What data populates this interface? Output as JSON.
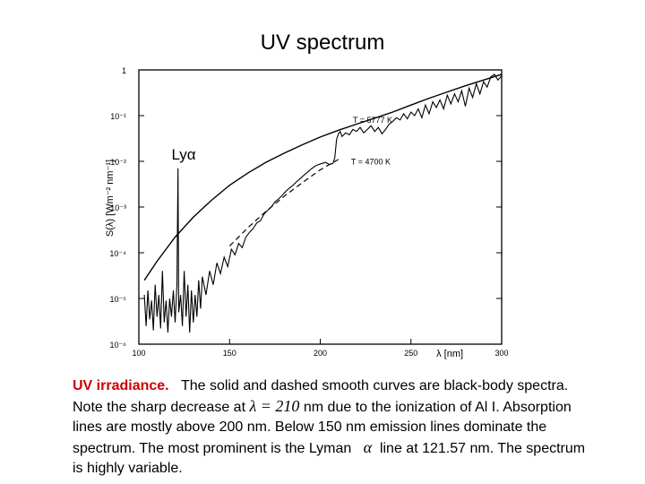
{
  "title": "UV spectrum",
  "caption": {
    "heading": "UV irradiance.",
    "line1": "The solid and dashed smooth curves are black-body spectra.",
    "line2a": "Note the sharp decrease at",
    "line2_math": "λ = 210",
    "line2b": "nm due to the ionization of Al I. Absorption",
    "line3": "lines are mostly above 200 nm. Below 150 nm emission lines dominate the",
    "line4a": "spectrum. The most prominent is the Lyman",
    "line4_math": "α",
    "line4b": "line at 121.57 nm. The spectrum",
    "line5": "is highly variable."
  },
  "chart_data": {
    "type": "line",
    "scale_y": "log",
    "xlim": [
      100,
      300
    ],
    "ylim": [
      1e-06,
      1
    ],
    "xticks": [
      100,
      150,
      200,
      250,
      300
    ],
    "xtick_labels": [
      "100",
      "150",
      "200",
      "250",
      "300"
    ],
    "yticks": [
      1e-06,
      1e-05,
      0.0001,
      0.001,
      0.01,
      0.1,
      1
    ],
    "ytick_labels": [
      "10⁻⁶",
      "10⁻⁵",
      "10⁻⁴",
      "10⁻³",
      "10⁻²",
      "10⁻¹",
      "1"
    ],
    "xlabel": "λ [nm]",
    "ylabel": "S(λ) [Wm⁻² nm⁻¹]",
    "annotations": [
      {
        "text": "T = 5777 K",
        "x": 218,
        "y": 0.07
      },
      {
        "text": "T = 4700 K",
        "x": 217,
        "y": 0.0085
      },
      {
        "text": "Lyα",
        "x": 118,
        "y": 0.011
      }
    ],
    "series": [
      {
        "style": "solid",
        "x": [
          103,
          110,
          120,
          130,
          140,
          150,
          160,
          170,
          180,
          190,
          200,
          210,
          220,
          230,
          240,
          250,
          260,
          270,
          280,
          290,
          300
        ],
        "y": [
          2.5e-05,
          6.5e-05,
          0.00022,
          0.0006,
          0.0014,
          0.003,
          0.0055,
          0.0095,
          0.015,
          0.023,
          0.034,
          0.048,
          0.065,
          0.088,
          0.12,
          0.17,
          0.24,
          0.33,
          0.45,
          0.6,
          0.8
        ]
      },
      {
        "style": "dashed",
        "x": [
          150,
          160,
          170,
          180,
          190,
          200,
          205,
          210
        ],
        "y": [
          0.00014,
          0.00035,
          0.0008,
          0.0017,
          0.0034,
          0.0065,
          0.0085,
          0.011
        ]
      },
      {
        "style": "observed",
        "x": [
          103,
          104,
          105,
          106,
          107,
          108,
          109,
          110,
          111,
          112,
          113,
          114,
          115,
          116,
          117,
          118,
          119,
          120,
          121,
          121.6,
          122,
          123,
          124,
          125,
          126,
          127,
          128,
          129,
          130,
          131,
          132,
          133,
          134,
          135,
          137,
          139,
          141,
          143,
          145,
          147,
          149,
          151,
          153,
          155,
          157,
          159,
          161,
          163,
          165,
          167,
          169,
          171,
          173,
          175,
          177,
          179,
          181,
          183,
          185,
          187,
          189,
          191,
          193,
          195,
          197,
          199,
          201,
          203,
          205,
          207,
          208,
          209,
          210,
          211,
          212,
          214,
          216,
          218,
          220,
          222,
          224,
          226,
          228,
          230,
          232,
          234,
          236,
          238,
          240,
          242,
          244,
          246,
          248,
          250,
          252,
          254,
          256,
          258,
          260,
          262,
          264,
          266,
          268,
          270,
          272,
          274,
          276,
          278,
          280,
          282,
          284,
          286,
          288,
          290,
          292,
          294,
          296,
          298,
          300
        ],
        "y": [
          1.2e-05,
          2.5e-06,
          1.5e-05,
          3.5e-06,
          9e-06,
          2e-06,
          2e-05,
          4e-06,
          1.2e-05,
          2.2e-06,
          4e-05,
          3e-06,
          9e-06,
          1.8e-06,
          1e-05,
          4e-06,
          1.5e-05,
          3e-06,
          2e-05,
          0.007,
          5e-06,
          1.2e-05,
          2.5e-06,
          4e-05,
          4e-06,
          2e-05,
          1.8e-06,
          1.5e-05,
          3e-06,
          1.2e-05,
          4e-06,
          2.5e-05,
          6e-06,
          3e-05,
          1.2e-05,
          4e-05,
          2e-05,
          6e-05,
          3.5e-05,
          8e-05,
          5e-05,
          0.00012,
          9e-05,
          0.00016,
          0.00013,
          0.00022,
          0.00028,
          0.00034,
          0.00045,
          0.0005,
          0.0007,
          0.00085,
          0.001,
          0.0013,
          0.0015,
          0.0018,
          0.0022,
          0.0026,
          0.003,
          0.0036,
          0.0042,
          0.005,
          0.0058,
          0.0068,
          0.0078,
          0.0085,
          0.009,
          0.0095,
          0.0085,
          0.009,
          0.012,
          0.03,
          0.04,
          0.045,
          0.035,
          0.042,
          0.038,
          0.05,
          0.045,
          0.055,
          0.042,
          0.05,
          0.06,
          0.045,
          0.055,
          0.04,
          0.05,
          0.065,
          0.075,
          0.09,
          0.08,
          0.11,
          0.085,
          0.12,
          0.1,
          0.14,
          0.09,
          0.17,
          0.11,
          0.2,
          0.15,
          0.22,
          0.14,
          0.28,
          0.18,
          0.3,
          0.2,
          0.35,
          0.16,
          0.4,
          0.25,
          0.5,
          0.3,
          0.55,
          0.42,
          0.7,
          0.8,
          0.6,
          0.75
        ]
      }
    ]
  }
}
